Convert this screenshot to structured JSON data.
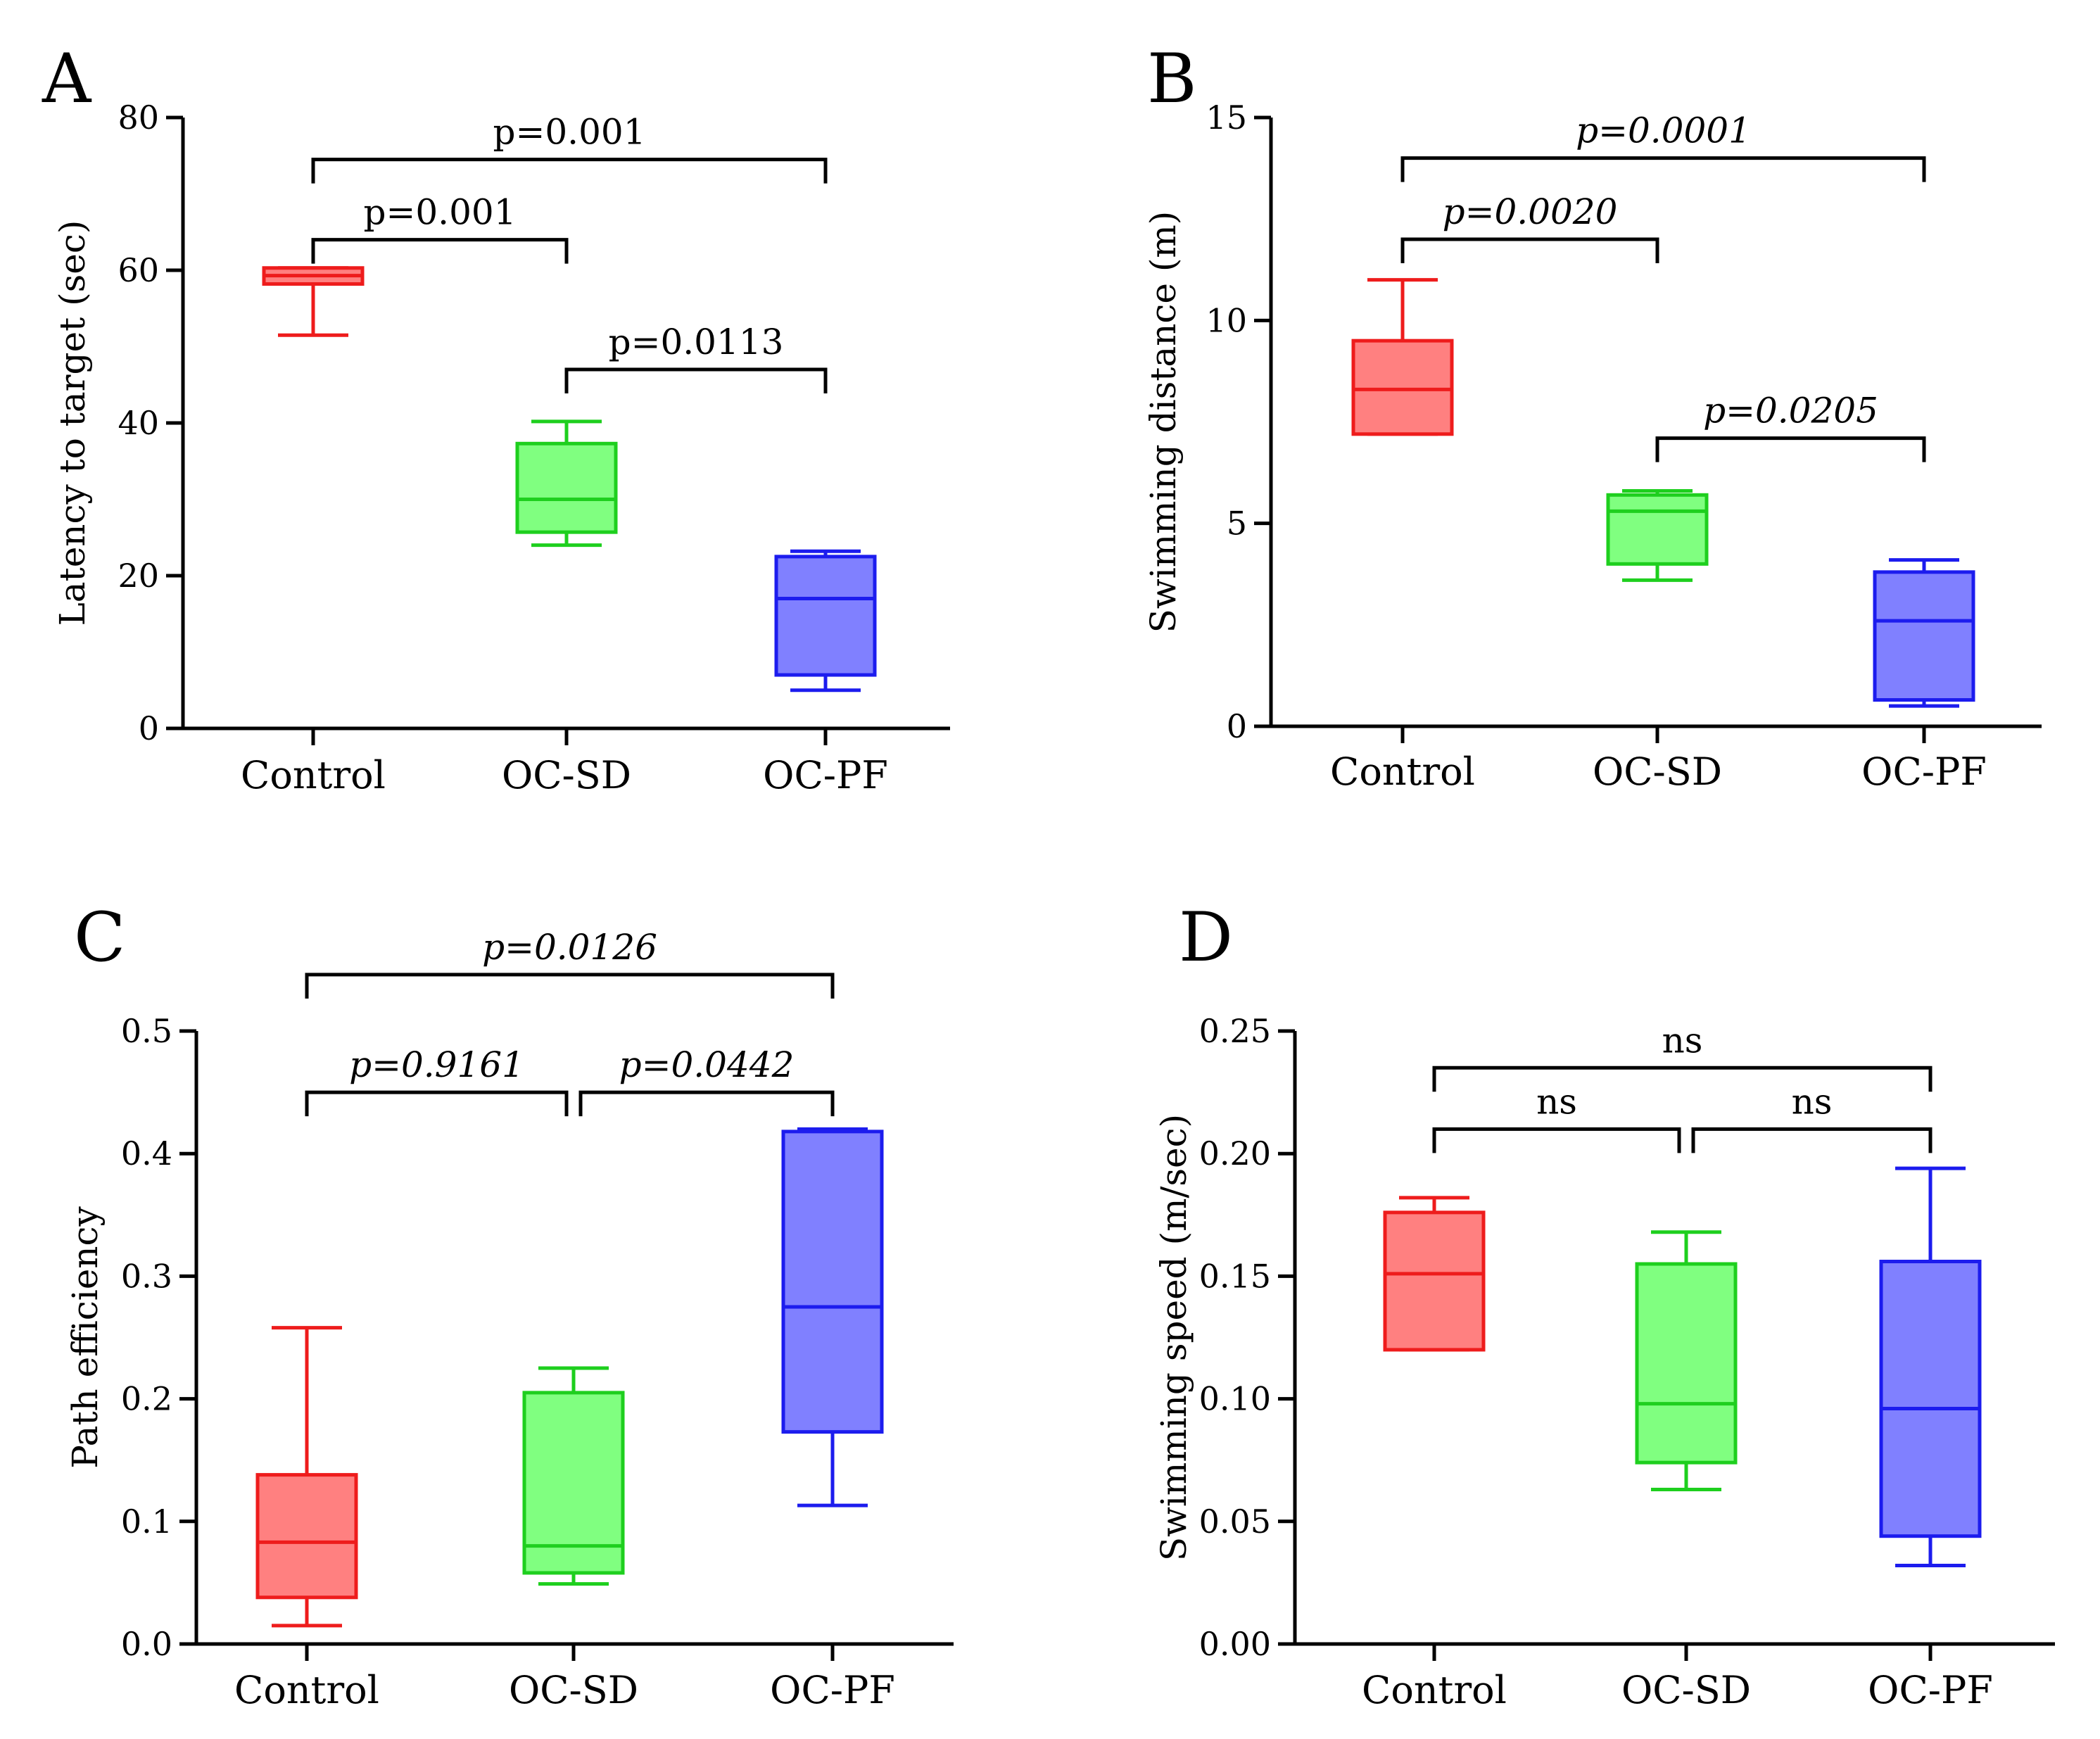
{
  "figure": {
    "panels": [
      {
        "letter": "A",
        "ylabel": "Latency to target (sec)",
        "ylim": [
          0,
          80
        ],
        "ticks": [
          0,
          20,
          40,
          60,
          80
        ],
        "tick_labels": [
          "0",
          "20",
          "40",
          "60",
          "80"
        ],
        "italic": false,
        "boxes": [
          {
            "category": "Control",
            "min": 51.5,
            "q1": 58.2,
            "median": 59.3,
            "q3": 60.3,
            "max": 60.3
          },
          {
            "category": "OC-SD",
            "min": 24.0,
            "q1": 25.7,
            "median": 30.0,
            "q3": 37.3,
            "max": 40.2
          },
          {
            "category": "OC-PF",
            "min": 5.0,
            "q1": 7.0,
            "median": 17.0,
            "q3": 22.5,
            "max": 23.2
          }
        ],
        "comparisons": [
          {
            "text": "p=0.001",
            "from": 0,
            "to": 2,
            "y": 74.5
          },
          {
            "text": "p=0.001",
            "from": 0,
            "to": 1,
            "y": 64.0
          },
          {
            "text": "p=0.0113",
            "from": 1,
            "to": 2,
            "y": 47.0
          }
        ]
      },
      {
        "letter": "B",
        "ylabel": "Swimming distance (m)",
        "ylim": [
          0,
          15
        ],
        "ticks": [
          0,
          5,
          10,
          15
        ],
        "tick_labels": [
          "0",
          "5",
          "10",
          "15"
        ],
        "italic": true,
        "boxes": [
          {
            "category": "Control",
            "min": 7.2,
            "q1": 7.2,
            "median": 8.3,
            "q3": 9.5,
            "max": 11.0
          },
          {
            "category": "OC-SD",
            "min": 3.6,
            "q1": 4.0,
            "median": 5.3,
            "q3": 5.7,
            "max": 5.8
          },
          {
            "category": "OC-PF",
            "min": 0.5,
            "q1": 0.65,
            "median": 2.6,
            "q3": 3.8,
            "max": 4.1
          }
        ],
        "comparisons": [
          {
            "text": "p=0.0001",
            "from": 0,
            "to": 2,
            "y": 14.0
          },
          {
            "text": "p=0.0020",
            "from": 0,
            "to": 1,
            "y": 12.0
          },
          {
            "text": "p=0.0205",
            "from": 1,
            "to": 2,
            "y": 7.1
          }
        ]
      },
      {
        "letter": "C",
        "ylabel": "Path efficiency",
        "ylim": [
          0,
          0.5
        ],
        "ticks": [
          0,
          0.1,
          0.2,
          0.3,
          0.4,
          0.5
        ],
        "tick_labels": [
          "0.0",
          "0.1",
          "0.2",
          "0.3",
          "0.4",
          "0.5"
        ],
        "italic": true,
        "boxes": [
          {
            "category": "Control",
            "min": 0.015,
            "q1": 0.038,
            "median": 0.083,
            "q3": 0.138,
            "max": 0.258
          },
          {
            "category": "OC-SD",
            "min": 0.049,
            "q1": 0.058,
            "median": 0.08,
            "q3": 0.205,
            "max": 0.225
          },
          {
            "category": "OC-PF",
            "min": 0.113,
            "q1": 0.173,
            "median": 0.275,
            "q3": 0.418,
            "max": 0.42
          }
        ],
        "comparisons": [
          {
            "text": "p=0.0126",
            "from": 0,
            "to": 2,
            "y": 0.546
          },
          {
            "text": "p=0.9161",
            "from": 0,
            "to": 1,
            "y": 0.45
          },
          {
            "text": "p=0.0442",
            "from": 1,
            "to": 2,
            "y": 0.45
          }
        ]
      },
      {
        "letter": "D",
        "ylabel": "Swimming speed (m/sec)",
        "ylim": [
          0,
          0.25
        ],
        "ticks": [
          0,
          0.05,
          0.1,
          0.15,
          0.2,
          0.25
        ],
        "tick_labels": [
          "0.00",
          "0.05",
          "0.10",
          "0.15",
          "0.20",
          "0.25"
        ],
        "italic": false,
        "boxes": [
          {
            "category": "Control",
            "min": 0.12,
            "q1": 0.12,
            "median": 0.151,
            "q3": 0.176,
            "max": 0.182
          },
          {
            "category": "OC-SD",
            "min": 0.063,
            "q1": 0.074,
            "median": 0.098,
            "q3": 0.155,
            "max": 0.168
          },
          {
            "category": "OC-PF",
            "min": 0.032,
            "q1": 0.044,
            "median": 0.096,
            "q3": 0.156,
            "max": 0.194
          }
        ],
        "comparisons": [
          {
            "text": "ns",
            "from": 0,
            "to": 2,
            "y": 0.235
          },
          {
            "text": "ns",
            "from": 0,
            "to": 1,
            "y": 0.21
          },
          {
            "text": "ns",
            "from": 1,
            "to": 2,
            "y": 0.21
          }
        ]
      }
    ],
    "colors": {
      "Control": {
        "fill": "#ff8080",
        "stroke": "#ee1c1c"
      },
      "OC-SD": {
        "fill": "#80ff80",
        "stroke": "#1ecf1e"
      },
      "OC-PF": {
        "fill": "#8080ff",
        "stroke": "#1c1cee"
      }
    }
  },
  "chart_data": [
    {
      "type": "box",
      "title": "A",
      "xlabel": "",
      "ylabel": "Latency to target (sec)",
      "ylim": [
        0,
        80
      ],
      "categories": [
        "Control",
        "OC-SD",
        "OC-PF"
      ],
      "series": [
        {
          "name": "min",
          "values": [
            51.5,
            24.0,
            5.0
          ]
        },
        {
          "name": "q1",
          "values": [
            58.2,
            25.7,
            7.0
          ]
        },
        {
          "name": "median",
          "values": [
            59.3,
            30.0,
            17.0
          ]
        },
        {
          "name": "q3",
          "values": [
            60.3,
            37.3,
            22.5
          ]
        },
        {
          "name": "max",
          "values": [
            60.3,
            40.2,
            23.2
          ]
        }
      ],
      "annotations": [
        "p=0.001 (Control vs OC-PF)",
        "p=0.001 (Control vs OC-SD)",
        "p=0.0113 (OC-SD vs OC-PF)"
      ]
    },
    {
      "type": "box",
      "title": "B",
      "xlabel": "",
      "ylabel": "Swimming distance (m)",
      "ylim": [
        0,
        15
      ],
      "categories": [
        "Control",
        "OC-SD",
        "OC-PF"
      ],
      "series": [
        {
          "name": "min",
          "values": [
            7.2,
            3.6,
            0.5
          ]
        },
        {
          "name": "q1",
          "values": [
            7.2,
            4.0,
            0.65
          ]
        },
        {
          "name": "median",
          "values": [
            8.3,
            5.3,
            2.6
          ]
        },
        {
          "name": "q3",
          "values": [
            9.5,
            5.7,
            3.8
          ]
        },
        {
          "name": "max",
          "values": [
            11.0,
            5.8,
            4.1
          ]
        }
      ],
      "annotations": [
        "p=0.0001 (Control vs OC-PF)",
        "p=0.0020 (Control vs OC-SD)",
        "p=0.0205 (OC-SD vs OC-PF)"
      ]
    },
    {
      "type": "box",
      "title": "C",
      "xlabel": "",
      "ylabel": "Path efficiency",
      "ylim": [
        0,
        0.5
      ],
      "categories": [
        "Control",
        "OC-SD",
        "OC-PF"
      ],
      "series": [
        {
          "name": "min",
          "values": [
            0.015,
            0.049,
            0.113
          ]
        },
        {
          "name": "q1",
          "values": [
            0.038,
            0.058,
            0.173
          ]
        },
        {
          "name": "median",
          "values": [
            0.083,
            0.08,
            0.275
          ]
        },
        {
          "name": "q3",
          "values": [
            0.138,
            0.205,
            0.418
          ]
        },
        {
          "name": "max",
          "values": [
            0.258,
            0.225,
            0.42
          ]
        }
      ],
      "annotations": [
        "p=0.0126 (Control vs OC-PF)",
        "p=0.9161 (Control vs OC-SD)",
        "p=0.0442 (OC-SD vs OC-PF)"
      ]
    },
    {
      "type": "box",
      "title": "D",
      "xlabel": "",
      "ylabel": "Swimming speed (m/sec)",
      "ylim": [
        0,
        0.25
      ],
      "categories": [
        "Control",
        "OC-SD",
        "OC-PF"
      ],
      "series": [
        {
          "name": "min",
          "values": [
            0.12,
            0.063,
            0.032
          ]
        },
        {
          "name": "q1",
          "values": [
            0.12,
            0.074,
            0.044
          ]
        },
        {
          "name": "median",
          "values": [
            0.151,
            0.098,
            0.096
          ]
        },
        {
          "name": "q3",
          "values": [
            0.176,
            0.155,
            0.156
          ]
        },
        {
          "name": "max",
          "values": [
            0.182,
            0.168,
            0.194
          ]
        }
      ],
      "annotations": [
        "ns (Control vs OC-PF)",
        "ns (Control vs OC-SD)",
        "ns (OC-SD vs OC-PF)"
      ]
    }
  ]
}
